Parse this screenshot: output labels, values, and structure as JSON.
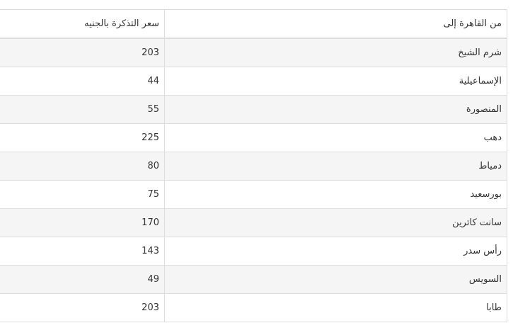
{
  "table": {
    "headers": [
      "من القاهرة إلى",
      "سعر التذكرة بالجنيه"
    ],
    "rows": [
      [
        "شرم الشيخ",
        "203"
      ],
      [
        "الإسماعيلية",
        "44"
      ],
      [
        "المنصورة",
        "55"
      ],
      [
        "دهب",
        "225"
      ],
      [
        "دمياط",
        "80"
      ],
      [
        "بورسعيد",
        "75"
      ],
      [
        "سانت كاترين",
        "170"
      ],
      [
        "رأس سدر",
        "143"
      ],
      [
        "السويس",
        "49"
      ],
      [
        "طابا",
        "203"
      ]
    ]
  }
}
